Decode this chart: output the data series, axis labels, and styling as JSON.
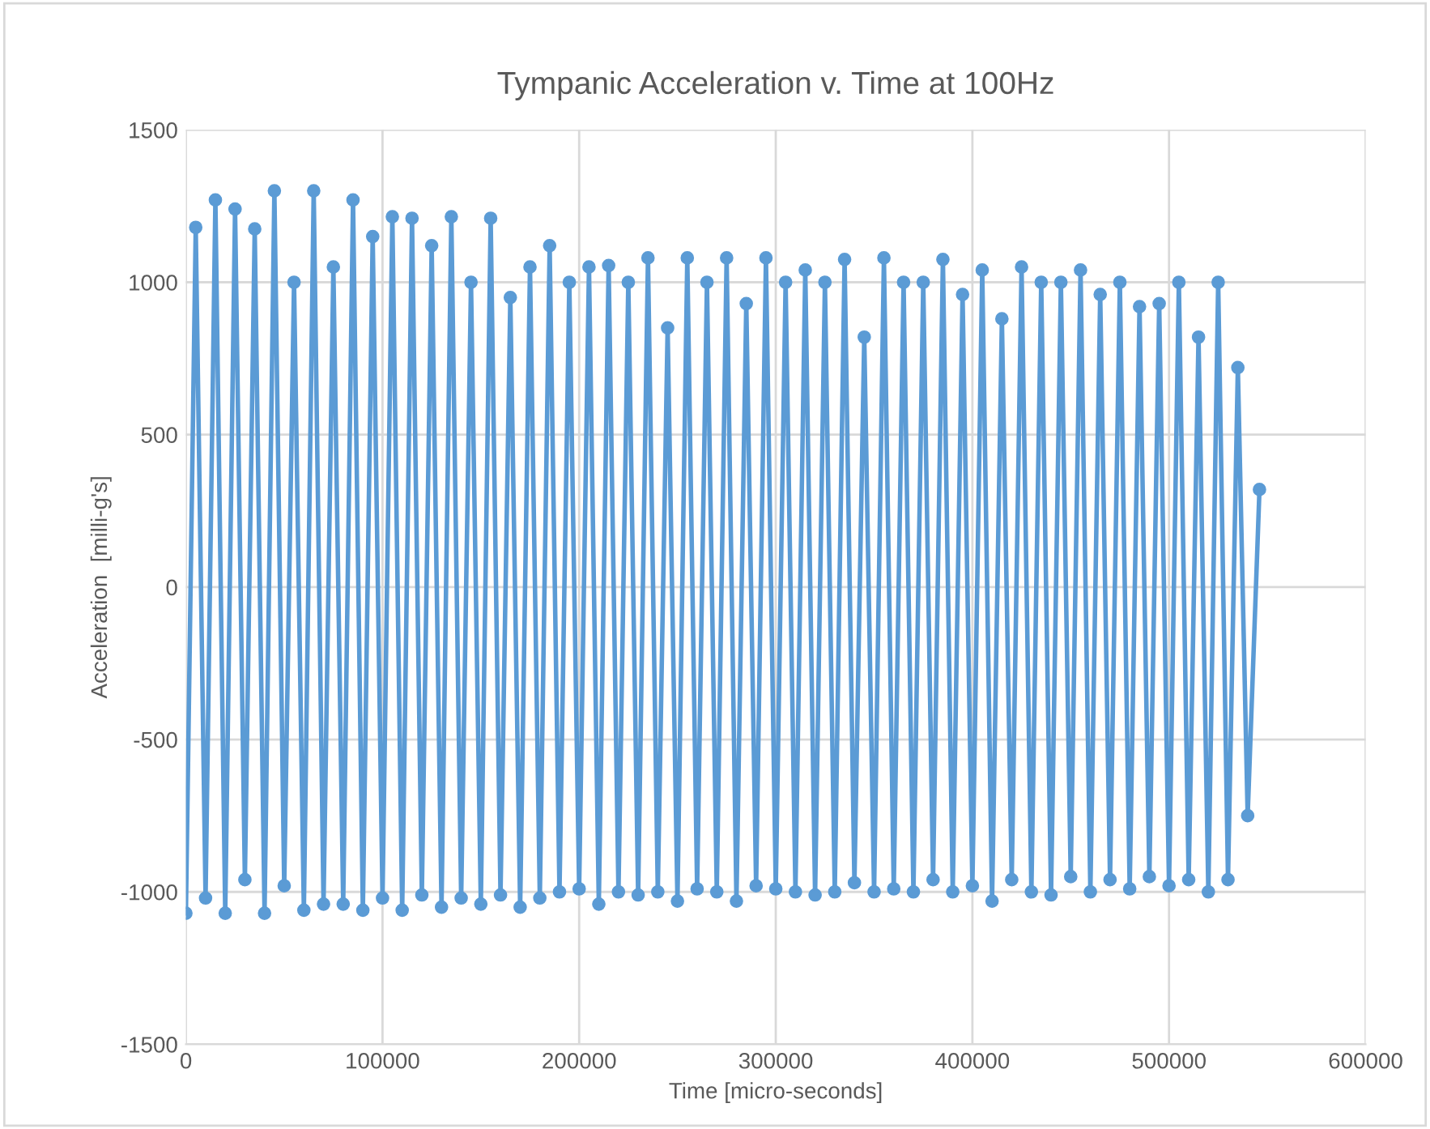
{
  "chart_data": {
    "type": "line",
    "title": "Tympanic Acceleration v. Time at 100Hz",
    "xlabel": "Time [micro-seconds]",
    "ylabel": "Acceleration  [milli-g's]",
    "xlim": [
      0,
      600000
    ],
    "xticks": [
      0,
      100000,
      200000,
      300000,
      400000,
      500000,
      600000
    ],
    "ylim": [
      -1500,
      1500
    ],
    "yticks": [
      -1500,
      -1000,
      -500,
      0,
      500,
      1000,
      1500
    ],
    "grid": true,
    "marker": "circle",
    "line_style": "solid",
    "series": [
      {
        "color": "#5b9bd5",
        "x": [
          0,
          5000,
          10000,
          15000,
          20000,
          25000,
          30000,
          35000,
          40000,
          45000,
          50000,
          55000,
          60000,
          65000,
          70000,
          75000,
          80000,
          85000,
          90000,
          95000,
          100000,
          105000,
          110000,
          115000,
          120000,
          125000,
          130000,
          135000,
          140000,
          145000,
          150000,
          155000,
          160000,
          165000,
          170000,
          175000,
          180000,
          185000,
          190000,
          195000,
          200000,
          205000,
          210000,
          215000,
          220000,
          225000,
          230000,
          235000,
          240000,
          245000,
          250000,
          255000,
          260000,
          265000,
          270000,
          275000,
          280000,
          285000,
          290000,
          295000,
          300000,
          305000,
          310000,
          315000,
          320000,
          325000,
          330000,
          335000,
          340000,
          345000,
          350000,
          355000,
          360000,
          365000,
          370000,
          375000,
          380000,
          385000,
          390000,
          395000,
          400000,
          405000,
          410000,
          415000,
          420000,
          425000,
          430000,
          435000,
          440000,
          445000,
          450000,
          455000,
          460000,
          465000,
          470000,
          475000,
          480000,
          485000,
          490000,
          495000,
          500000,
          505000,
          510000,
          515000,
          520000,
          525000,
          530000,
          535000,
          540000,
          546000
        ],
        "values": [
          -1070,
          1180,
          -1020,
          1270,
          -1070,
          1240,
          -960,
          1175,
          -1070,
          1300,
          -980,
          1000,
          -1060,
          1300,
          -1040,
          1050,
          -1040,
          1270,
          -1060,
          1150,
          -1020,
          1215,
          -1060,
          1210,
          -1010,
          1120,
          -1050,
          1215,
          -1020,
          1000,
          -1040,
          1210,
          -1010,
          950,
          -1050,
          1050,
          -1020,
          1120,
          -1000,
          1000,
          -990,
          1050,
          -1040,
          1055,
          -1000,
          1000,
          -1010,
          1080,
          -1000,
          850,
          -1030,
          1080,
          -990,
          1000,
          -1000,
          1080,
          -1030,
          930,
          -980,
          1080,
          -990,
          1000,
          -1000,
          1040,
          -1010,
          1000,
          -1000,
          1075,
          -970,
          820,
          -1000,
          1080,
          -990,
          1000,
          -1000,
          1000,
          -960,
          1075,
          -1000,
          960,
          -980,
          1040,
          -1030,
          880,
          -960,
          1050,
          -1000,
          1000,
          -1010,
          1000,
          -950,
          1040,
          -1000,
          960,
          -960,
          1000,
          -990,
          920,
          -950,
          930,
          -980,
          1000,
          -960,
          820,
          -1000,
          1000,
          -960,
          720,
          -750,
          320
        ]
      }
    ]
  }
}
